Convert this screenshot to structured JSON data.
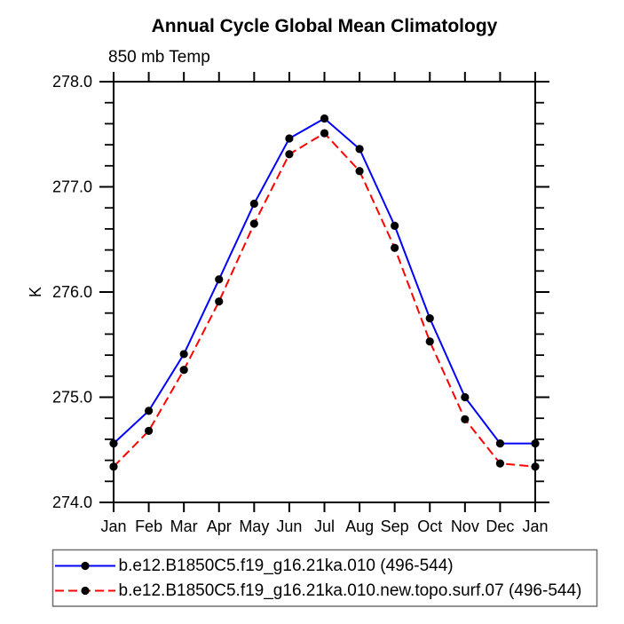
{
  "title": "Annual Cycle Global Mean Climatology",
  "subtitle": "850 mb Temp",
  "ylabel": "K",
  "colors": {
    "axis": "#000000",
    "text": "#000000",
    "series1": "#0000ff",
    "series2": "#ff0000",
    "marker": "#000000",
    "legend_border": "#6f6f6f",
    "background": "#ffffff"
  },
  "chart_data": {
    "type": "line",
    "title": "Annual Cycle Global Mean Climatology",
    "subtitle": "850 mb Temp",
    "xlabel": "",
    "ylabel": "K",
    "categories": [
      "Jan",
      "Feb",
      "Mar",
      "Apr",
      "May",
      "Jun",
      "Jul",
      "Aug",
      "Sep",
      "Oct",
      "Nov",
      "Dec",
      "Jan"
    ],
    "series": [
      {
        "name": "b.e12.B1850C5.f19_g16.21ka.010 (496-544)",
        "color": "#0000ff",
        "line_style": "solid",
        "marker": "filled-circle",
        "marker_color": "#000000",
        "values": [
          274.56,
          274.87,
          275.41,
          276.12,
          276.84,
          277.46,
          277.65,
          277.36,
          276.63,
          275.75,
          275.0,
          274.56,
          274.56
        ]
      },
      {
        "name": "b.e12.B1850C5.f19_g16.21ka.010.new.topo.surf.07 (496-544)",
        "color": "#ff0000",
        "line_style": "dashed",
        "marker": "filled-circle",
        "marker_color": "#000000",
        "values": [
          274.34,
          274.68,
          275.26,
          275.91,
          276.65,
          277.31,
          277.51,
          277.15,
          276.42,
          275.53,
          274.79,
          274.37,
          274.34
        ]
      }
    ],
    "ylim": [
      274.0,
      278.0
    ],
    "yticks": {
      "major_values": [
        274.0,
        275.0,
        276.0,
        277.0,
        278.0
      ],
      "major_labels": [
        "274.0",
        "275.0",
        "276.0",
        "277.0",
        "278.0"
      ],
      "minor_step": 0.2
    },
    "grid": false,
    "legend_position": "bottom-boxed"
  }
}
